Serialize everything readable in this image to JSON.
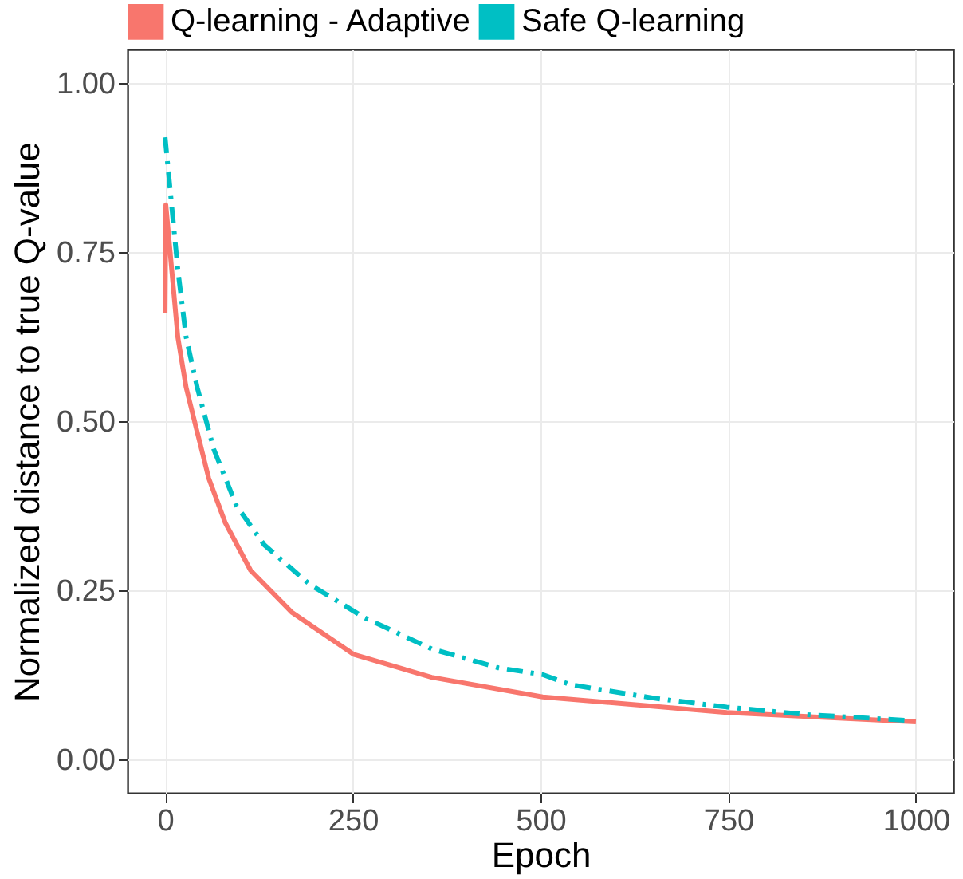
{
  "chart_data": {
    "type": "line",
    "xlabel": "Epoch",
    "ylabel": "Normalized distance to true Q-value",
    "xlim": [
      -50,
      1050
    ],
    "xticks": [
      0,
      250,
      500,
      750,
      1000
    ],
    "ylim": [
      -0.05,
      1.05
    ],
    "yticks": [
      {
        "value": 0,
        "label": "0.00"
      },
      {
        "value": 0.25,
        "label": "0.25"
      },
      {
        "value": 0.5,
        "label": "0.50"
      },
      {
        "value": 0.75,
        "label": "0.75"
      },
      {
        "value": 1,
        "label": "1.00"
      }
    ],
    "grid": true,
    "legend": "top",
    "marker": "none",
    "series": [
      {
        "name": "Q-learning - Adaptive",
        "color": "#f8766d",
        "line_style": "solid",
        "x": [
          0,
          1,
          17,
          28,
          43,
          58,
          80,
          114,
          169,
          251,
          355,
          503,
          748,
          1000
        ],
        "values": [
          0.66,
          0.82,
          0.624,
          0.55,
          0.483,
          0.416,
          0.35,
          0.279,
          0.217,
          0.155,
          0.121,
          0.092,
          0.069,
          0.055
        ]
      },
      {
        "name": "Safe Q-learning",
        "color": "#00bfc4",
        "line_style": "dashed",
        "x": [
          0,
          17,
          28,
          43,
          65,
          95,
          132,
          192,
          266,
          355,
          444,
          503,
          540,
          652,
          748,
          852,
          993
        ],
        "values": [
          0.92,
          0.724,
          0.624,
          0.549,
          0.458,
          0.375,
          0.317,
          0.259,
          0.209,
          0.163,
          0.135,
          0.125,
          0.11,
          0.09,
          0.077,
          0.066,
          0.057
        ]
      }
    ]
  }
}
